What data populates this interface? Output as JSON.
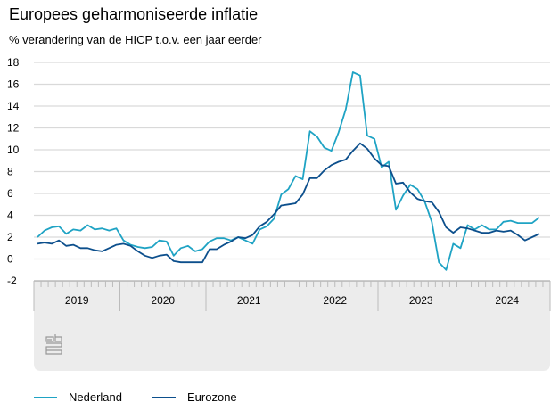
{
  "chart_data": {
    "type": "line",
    "title": "Europees geharmoniseerde inflatie",
    "subtitle": "% verandering van de HICP t.o.v. een jaar eerder",
    "xlabel": "",
    "ylabel": "",
    "ylim": [
      -2,
      18
    ],
    "yticks": [
      "18",
      "16",
      "14",
      "12",
      "10",
      "8",
      "6",
      "4",
      "2",
      "0",
      "-2"
    ],
    "ytick_values": [
      18,
      16,
      14,
      12,
      10,
      8,
      6,
      4,
      2,
      0,
      -2
    ],
    "years": [
      "2019",
      "2020",
      "2021",
      "2022",
      "2023",
      "2024"
    ],
    "x_start": "2019-01",
    "frequency": "monthly",
    "grid": true,
    "legend_position": "bottom-left",
    "series": [
      {
        "name": "Nederland",
        "color": "#1fa3c4",
        "values": [
          2.0,
          2.6,
          2.9,
          3.0,
          2.3,
          2.7,
          2.6,
          3.1,
          2.7,
          2.8,
          2.6,
          2.8,
          1.7,
          1.3,
          1.1,
          1.0,
          1.1,
          1.7,
          1.6,
          0.3,
          1.0,
          1.2,
          0.7,
          0.9,
          1.6,
          1.9,
          1.9,
          1.7,
          2.0,
          1.7,
          1.4,
          2.7,
          3.0,
          3.7,
          5.9,
          6.4,
          7.6,
          7.3,
          11.7,
          11.2,
          10.2,
          9.9,
          11.6,
          13.7,
          17.1,
          16.8,
          11.3,
          11.0,
          8.4,
          8.9,
          4.5,
          5.8,
          6.8,
          6.4,
          5.3,
          3.4,
          -0.3,
          -1.0,
          1.4,
          1.0,
          3.1,
          2.7,
          3.1,
          2.7,
          2.7,
          3.4,
          3.5,
          3.3,
          3.3,
          3.3,
          3.8
        ]
      },
      {
        "name": "Eurozone",
        "color": "#0c4f8c",
        "values": [
          1.4,
          1.5,
          1.4,
          1.7,
          1.2,
          1.3,
          1.0,
          1.0,
          0.8,
          0.7,
          1.0,
          1.3,
          1.4,
          1.2,
          0.7,
          0.3,
          0.1,
          0.3,
          0.4,
          -0.2,
          -0.3,
          -0.3,
          -0.3,
          -0.3,
          0.9,
          0.9,
          1.3,
          1.6,
          2.0,
          1.9,
          2.2,
          3.0,
          3.4,
          4.1,
          4.9,
          5.0,
          5.1,
          5.9,
          7.4,
          7.4,
          8.1,
          8.6,
          8.9,
          9.1,
          9.9,
          10.6,
          10.1,
          9.2,
          8.6,
          8.5,
          6.9,
          7.0,
          6.1,
          5.5,
          5.3,
          5.2,
          4.3,
          2.9,
          2.4,
          2.9,
          2.8,
          2.6,
          2.4,
          2.4,
          2.6,
          2.5,
          2.6,
          2.2,
          1.7,
          2.0,
          2.3
        ]
      }
    ]
  },
  "logo": "cbs"
}
